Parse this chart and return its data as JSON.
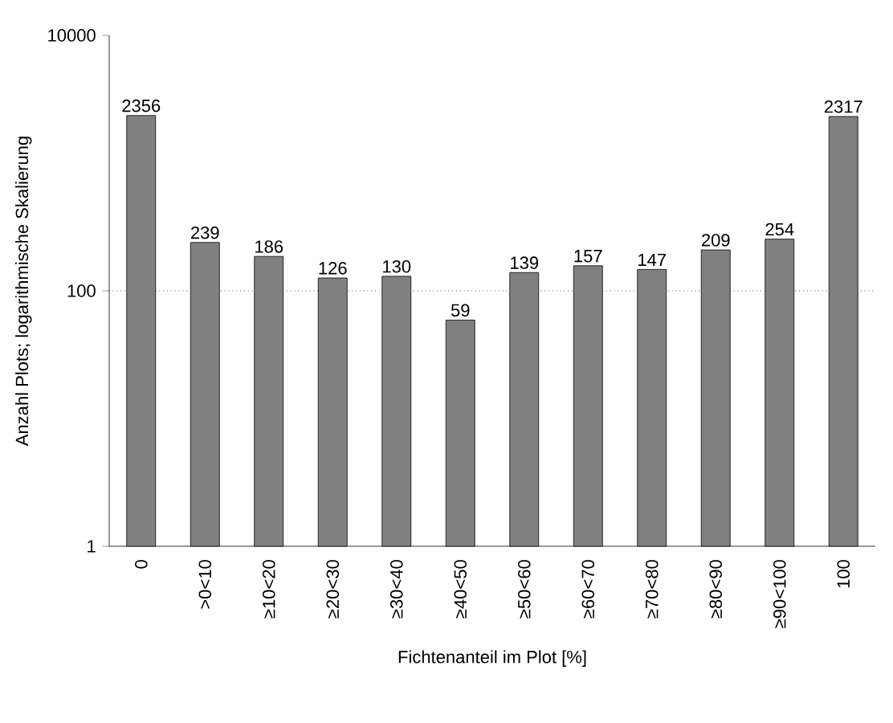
{
  "chart_data": {
    "type": "bar",
    "xlabel": "Fichtenanteil im Plot [%]",
    "ylabel": "Anzahl Plots; logarithmische Skalierung",
    "categories": [
      "0",
      ">0<10",
      "≥10<20",
      "≥20<30",
      "≥30<40",
      "≥40<50",
      "≥50<60",
      "≥60<70",
      "≥70<80",
      "≥80<90",
      "≥90<100",
      "100"
    ],
    "values": [
      2356,
      239,
      186,
      126,
      130,
      59,
      139,
      157,
      147,
      209,
      254,
      2317
    ],
    "color": "#808080",
    "log": "y",
    "ylim": [
      1,
      10000
    ],
    "yticks": [
      1,
      100,
      10000
    ],
    "data_labels": true,
    "ref_lines": [
      {
        "axis": "y",
        "value": 100,
        "line_style": "dotted",
        "color": "#000000"
      }
    ]
  }
}
